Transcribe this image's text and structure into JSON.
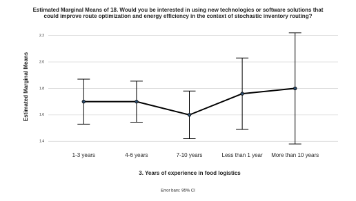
{
  "chart_data": {
    "type": "line",
    "title": [
      "Estimated Marginal Means of 18. Would you be interested in using new technologies or software solutions that",
      "could improve route optimization and energy efficiency in the context of stochastic inventory routing?"
    ],
    "x_label": "3. Years of experience in food logistics",
    "y_label": "Estimated Marginal Means",
    "note": "Error bars: 95% CI",
    "categories": [
      "1-3 years",
      "4-6 years",
      "7-10 years",
      "Less than 1 year",
      "More than 10 years"
    ],
    "values": [
      1.7,
      1.7,
      1.6,
      1.76,
      1.8
    ],
    "errors": [
      0.17,
      0.155,
      0.18,
      0.27,
      0.42
    ],
    "color": "#000000",
    "ylim": [
      1.36,
      2.26
    ],
    "yticks": [
      1.4,
      1.6,
      1.8,
      {
        "value": 2,
        "label": "2.0"
      },
      2.2
    ],
    "grid": true
  }
}
